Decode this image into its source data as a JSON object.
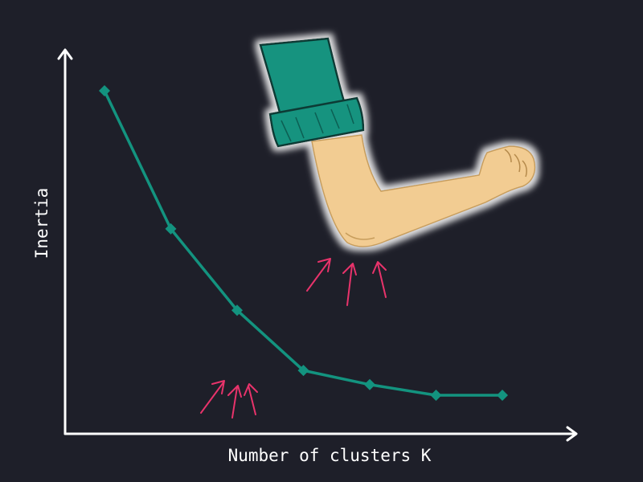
{
  "colors": {
    "background": "#1e1f29",
    "axis": "#ffffff",
    "line": "#13937f",
    "arrow": "#e8336b",
    "sleeve": "#13937f",
    "skin": "#f2cc92"
  },
  "chart_data": {
    "type": "line",
    "xlabel": "Number of clusters K",
    "ylabel": "Inertia",
    "grid": false,
    "axis_ticks": false,
    "x": [
      1,
      2,
      3,
      4,
      5,
      6,
      7
    ],
    "series": [
      {
        "values": [
          100,
          61,
          38,
          21,
          17,
          14,
          14
        ]
      }
    ],
    "annotations": [
      {
        "type": "pain-arrows",
        "at_x": 4,
        "description": "elbow point"
      },
      {
        "type": "illustration",
        "icon": "bent-arm-elbow-icon"
      }
    ]
  }
}
